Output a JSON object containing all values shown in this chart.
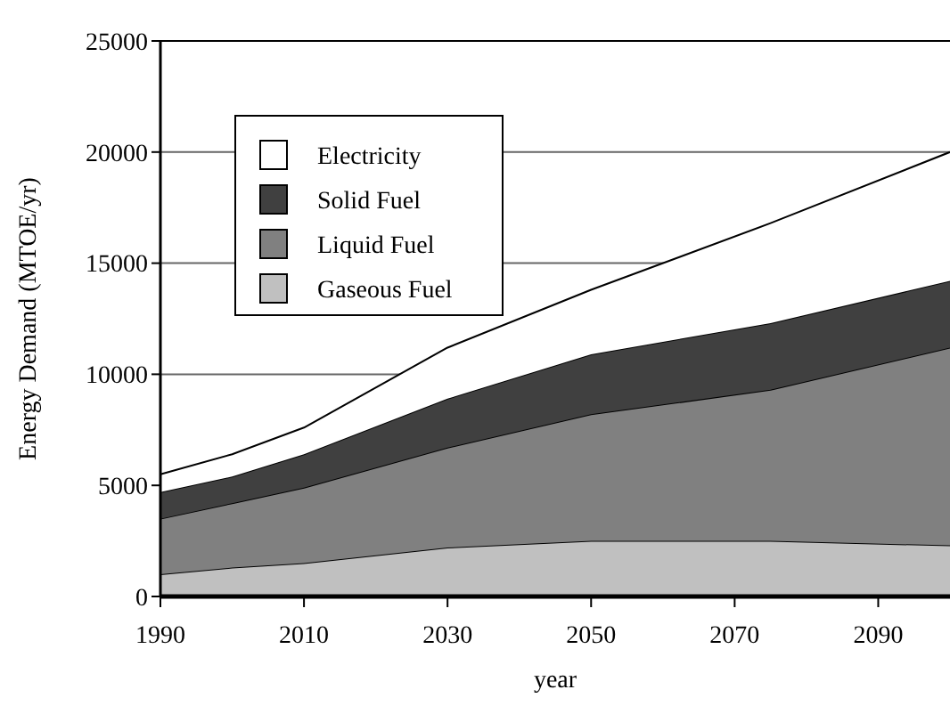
{
  "chart_data": {
    "type": "area",
    "stacked": true,
    "xlabel": "year",
    "ylabel": "Energy Demand (MTOE/yr)",
    "x": [
      1990,
      2000,
      2010,
      2030,
      2050,
      2075,
      2100
    ],
    "series": [
      {
        "name": "Gaseous Fuel",
        "color": "#c0c0c0",
        "values": [
          1000,
          1300,
          1500,
          2200,
          2500,
          2500,
          2300
        ]
      },
      {
        "name": "Liquid Fuel",
        "color": "#808080",
        "values": [
          2500,
          2900,
          3400,
          4500,
          5700,
          6800,
          8900
        ]
      },
      {
        "name": "Solid Fuel",
        "color": "#404040",
        "values": [
          1200,
          1200,
          1500,
          2200,
          2700,
          3000,
          3000
        ]
      },
      {
        "name": "Electricity",
        "color": "#ffffff",
        "values": [
          800,
          1000,
          1200,
          2300,
          2900,
          4500,
          5800
        ]
      }
    ],
    "xlim": [
      1990,
      2100
    ],
    "xticks": [
      1990,
      2010,
      2030,
      2050,
      2070,
      2090
    ],
    "ylim": [
      0,
      25000
    ],
    "yticks": [
      0,
      5000,
      10000,
      15000,
      20000,
      25000
    ],
    "grid": "y",
    "legend": "top left"
  }
}
